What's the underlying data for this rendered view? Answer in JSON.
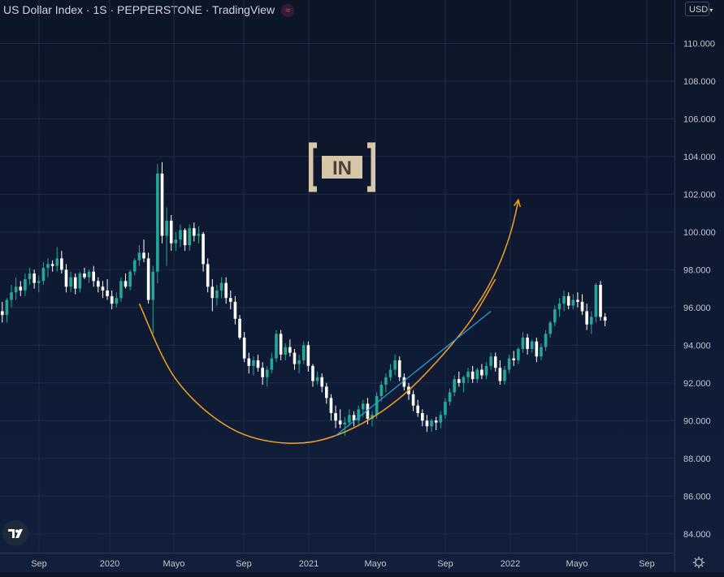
{
  "header": {
    "title": "US Dollar Index · 1S · PEPPERSTONE · TradingView",
    "badge_icon": "approx-sign-icon",
    "currency_label": "USD"
  },
  "watermark": {
    "text": "IN"
  },
  "colors": {
    "up": "#26a69a",
    "down": "#ffffff",
    "curve": "#f7a21b",
    "trendline": "#2aa3d6",
    "grid": "#1f2b45"
  },
  "chart_data": {
    "type": "candlestick",
    "y_ticks": [
      "110.000",
      "108.000",
      "106.000",
      "104.000",
      "102.000",
      "100.000",
      "98.000",
      "96.000",
      "94.000",
      "92.000",
      "90.000",
      "88.000",
      "86.000",
      "84.000"
    ],
    "x_ticks": [
      "Sep",
      "2020",
      "Mayo",
      "Sep",
      "2021",
      "Mayo",
      "Sep",
      "2022",
      "Mayo",
      "Sep"
    ],
    "ylim": [
      83.0,
      112.3
    ],
    "grid": true,
    "series": [
      {
        "ohlc": [
          [
            95.8,
            96.3,
            95.2,
            95.6
          ],
          [
            95.6,
            96.5,
            95.2,
            96.4
          ],
          [
            96.4,
            97.2,
            96.0,
            96.8
          ],
          [
            96.8,
            97.6,
            96.4,
            97.1
          ],
          [
            97.1,
            97.4,
            96.6,
            96.9
          ],
          [
            96.9,
            97.8,
            96.6,
            97.5
          ],
          [
            97.5,
            98.1,
            97.2,
            97.8
          ],
          [
            97.8,
            98.0,
            97.0,
            97.3
          ],
          [
            97.3,
            97.7,
            96.8,
            97.4
          ],
          [
            97.4,
            98.4,
            97.2,
            98.1
          ],
          [
            98.1,
            98.6,
            97.6,
            98.3
          ],
          [
            98.3,
            98.5,
            97.9,
            98.2
          ],
          [
            98.2,
            99.2,
            97.9,
            98.6
          ],
          [
            98.6,
            99.0,
            97.8,
            98.0
          ],
          [
            98.0,
            98.3,
            96.8,
            97.1
          ],
          [
            97.1,
            97.9,
            96.8,
            97.6
          ],
          [
            97.6,
            97.8,
            96.7,
            97.0
          ],
          [
            97.0,
            97.9,
            96.8,
            97.8
          ],
          [
            97.8,
            98.1,
            97.5,
            97.6
          ],
          [
            97.6,
            98.0,
            97.3,
            97.9
          ],
          [
            97.9,
            98.2,
            97.1,
            97.4
          ],
          [
            97.4,
            97.6,
            96.8,
            97.1
          ],
          [
            97.1,
            97.4,
            96.5,
            96.9
          ],
          [
            96.9,
            97.5,
            96.4,
            96.6
          ],
          [
            96.6,
            96.9,
            95.9,
            96.2
          ],
          [
            96.2,
            96.8,
            96.0,
            96.5
          ],
          [
            96.5,
            97.6,
            96.3,
            97.4
          ],
          [
            97.4,
            97.8,
            97.0,
            97.1
          ],
          [
            97.1,
            98.0,
            96.9,
            97.9
          ],
          [
            97.9,
            98.6,
            97.7,
            98.5
          ],
          [
            98.5,
            99.3,
            98.2,
            98.9
          ],
          [
            98.9,
            99.6,
            98.4,
            98.6
          ],
          [
            98.6,
            98.9,
            96.2,
            96.4
          ],
          [
            96.4,
            98.2,
            94.6,
            97.9
          ],
          [
            97.9,
            103.6,
            97.3,
            103.1
          ],
          [
            103.1,
            103.7,
            99.4,
            99.8
          ],
          [
            99.8,
            101.3,
            98.2,
            100.6
          ],
          [
            100.6,
            100.9,
            99.0,
            99.4
          ],
          [
            99.4,
            100.0,
            99.0,
            99.6
          ],
          [
            99.6,
            100.4,
            99.2,
            100.1
          ],
          [
            100.1,
            100.2,
            99.0,
            99.3
          ],
          [
            99.3,
            100.4,
            99.0,
            100.2
          ],
          [
            100.2,
            100.5,
            99.5,
            99.8
          ],
          [
            99.8,
            100.3,
            99.4,
            99.9
          ],
          [
            99.9,
            100.0,
            97.9,
            98.3
          ],
          [
            98.3,
            98.6,
            96.8,
            97.1
          ],
          [
            97.1,
            97.5,
            95.8,
            96.5
          ],
          [
            96.5,
            97.2,
            96.1,
            96.9
          ],
          [
            96.9,
            97.6,
            96.5,
            97.3
          ],
          [
            97.3,
            97.6,
            96.2,
            96.5
          ],
          [
            96.5,
            96.9,
            95.9,
            96.3
          ],
          [
            96.3,
            96.6,
            95.1,
            95.4
          ],
          [
            95.4,
            95.6,
            94.3,
            94.4
          ],
          [
            94.4,
            94.7,
            93.1,
            93.3
          ],
          [
            93.3,
            93.6,
            92.5,
            92.9
          ],
          [
            92.9,
            93.4,
            92.4,
            93.2
          ],
          [
            93.2,
            93.5,
            92.6,
            92.8
          ],
          [
            92.8,
            93.1,
            91.9,
            92.3
          ],
          [
            92.3,
            92.9,
            91.8,
            92.7
          ],
          [
            92.7,
            93.6,
            92.5,
            93.3
          ],
          [
            93.3,
            94.8,
            93.1,
            94.6
          ],
          [
            94.6,
            94.8,
            93.2,
            93.5
          ],
          [
            93.5,
            94.1,
            93.2,
            93.9
          ],
          [
            93.9,
            94.3,
            93.4,
            93.6
          ],
          [
            93.6,
            93.8,
            92.7,
            93.0
          ],
          [
            93.0,
            93.5,
            92.5,
            93.2
          ],
          [
            93.2,
            94.2,
            93.0,
            94.0
          ],
          [
            94.0,
            94.2,
            92.6,
            92.9
          ],
          [
            92.9,
            93.0,
            91.8,
            92.1
          ],
          [
            92.1,
            92.6,
            91.9,
            92.3
          ],
          [
            92.3,
            92.5,
            91.5,
            91.8
          ],
          [
            91.8,
            92.0,
            90.9,
            91.2
          ],
          [
            91.2,
            91.4,
            90.0,
            90.4
          ],
          [
            90.4,
            90.8,
            89.6,
            90.0
          ],
          [
            90.0,
            90.6,
            89.6,
            89.8
          ],
          [
            89.8,
            90.2,
            89.2,
            89.9
          ],
          [
            89.9,
            90.6,
            89.7,
            90.3
          ],
          [
            90.3,
            90.5,
            89.7,
            90.0
          ],
          [
            90.0,
            90.8,
            89.8,
            90.6
          ],
          [
            90.6,
            91.1,
            90.2,
            90.9
          ],
          [
            90.9,
            91.2,
            89.8,
            90.1
          ],
          [
            90.1,
            90.5,
            89.7,
            90.3
          ],
          [
            90.3,
            91.5,
            90.1,
            91.3
          ],
          [
            91.3,
            92.1,
            91.0,
            91.9
          ],
          [
            91.9,
            92.5,
            91.5,
            92.3
          ],
          [
            92.3,
            93.0,
            92.1,
            92.7
          ],
          [
            92.7,
            93.5,
            92.4,
            93.2
          ],
          [
            93.2,
            93.4,
            92.1,
            92.3
          ],
          [
            92.3,
            92.5,
            91.6,
            91.8
          ],
          [
            91.8,
            92.0,
            91.1,
            91.4
          ],
          [
            91.4,
            91.6,
            90.5,
            90.8
          ],
          [
            90.8,
            91.1,
            90.2,
            90.4
          ],
          [
            90.4,
            90.6,
            89.7,
            90.0
          ],
          [
            90.0,
            90.3,
            89.4,
            89.7
          ],
          [
            89.7,
            90.1,
            89.4,
            90.0
          ],
          [
            90.0,
            90.2,
            89.5,
            89.9
          ],
          [
            89.9,
            90.5,
            89.6,
            90.3
          ],
          [
            90.3,
            91.2,
            90.1,
            91.0
          ],
          [
            91.0,
            91.7,
            90.8,
            91.5
          ],
          [
            91.5,
            92.4,
            91.3,
            92.2
          ],
          [
            92.2,
            92.6,
            91.8,
            92.0
          ],
          [
            92.0,
            92.4,
            91.5,
            92.3
          ],
          [
            92.3,
            92.8,
            92.0,
            92.6
          ],
          [
            92.6,
            92.9,
            92.0,
            92.2
          ],
          [
            92.2,
            92.8,
            92.0,
            92.7
          ],
          [
            92.7,
            93.0,
            92.2,
            92.4
          ],
          [
            92.4,
            93.1,
            92.2,
            92.9
          ],
          [
            92.9,
            93.6,
            92.7,
            93.4
          ],
          [
            93.4,
            93.6,
            92.6,
            92.8
          ],
          [
            92.8,
            93.2,
            91.9,
            92.1
          ],
          [
            92.1,
            92.9,
            91.9,
            92.7
          ],
          [
            92.7,
            93.5,
            92.5,
            93.3
          ],
          [
            93.3,
            93.7,
            92.9,
            93.2
          ],
          [
            93.2,
            93.9,
            93.0,
            93.8
          ],
          [
            93.8,
            94.7,
            93.6,
            94.4
          ],
          [
            94.4,
            94.6,
            93.5,
            93.8
          ],
          [
            93.8,
            94.3,
            93.6,
            94.2
          ],
          [
            94.2,
            94.4,
            93.1,
            93.4
          ],
          [
            93.4,
            94.1,
            93.2,
            93.9
          ],
          [
            93.9,
            94.8,
            93.7,
            94.6
          ],
          [
            94.6,
            95.3,
            94.4,
            95.2
          ],
          [
            95.2,
            96.1,
            95.0,
            95.9
          ],
          [
            95.9,
            96.5,
            95.5,
            96.2
          ],
          [
            96.2,
            96.9,
            95.8,
            96.6
          ],
          [
            96.6,
            96.8,
            95.9,
            96.1
          ],
          [
            96.1,
            96.7,
            95.9,
            96.4
          ],
          [
            96.4,
            96.8,
            96.0,
            96.3
          ],
          [
            96.3,
            96.7,
            95.6,
            95.8
          ],
          [
            95.8,
            96.2,
            94.8,
            95.1
          ],
          [
            95.1,
            95.8,
            94.6,
            95.5
          ],
          [
            95.5,
            97.3,
            95.2,
            97.2
          ],
          [
            97.2,
            97.4,
            95.3,
            95.5
          ],
          [
            95.5,
            95.7,
            95.0,
            95.3
          ]
        ]
      }
    ],
    "annotations": {
      "bowl_curve": [
        [
          30,
          96.2
        ],
        [
          38,
          92.2
        ],
        [
          50,
          89.6
        ],
        [
          63,
          88.8
        ],
        [
          75,
          89.4
        ],
        [
          88,
          91.4
        ],
        [
          101,
          94.8
        ],
        [
          108,
          97.5
        ]
      ],
      "trendline": [
        [
          73,
          89.2
        ],
        [
          107,
          95.8
        ]
      ],
      "arrow": [
        [
          103,
          95.8
        ],
        [
          113,
          101.7
        ]
      ]
    }
  }
}
